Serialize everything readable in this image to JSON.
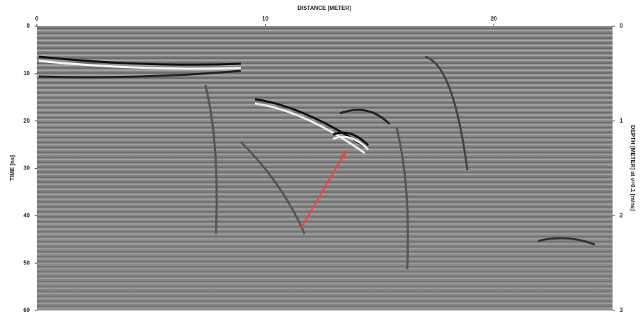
{
  "chart_data": {
    "type": "image",
    "title": "DISTANCE [METER]",
    "y_label": "TIME [ns]",
    "y2_label": "DEPTH [METER] at v=0.1 [m/ns]",
    "xlim": [
      0,
      25.2
    ],
    "xticks": [
      0,
      10,
      20
    ],
    "ylim": [
      0,
      60
    ],
    "yticks": [
      0,
      10,
      20,
      30,
      40,
      50,
      60
    ],
    "invert_y": true,
    "y2lim": [
      0,
      3
    ],
    "y2ticks": [
      0,
      1,
      2,
      3
    ]
  }
}
